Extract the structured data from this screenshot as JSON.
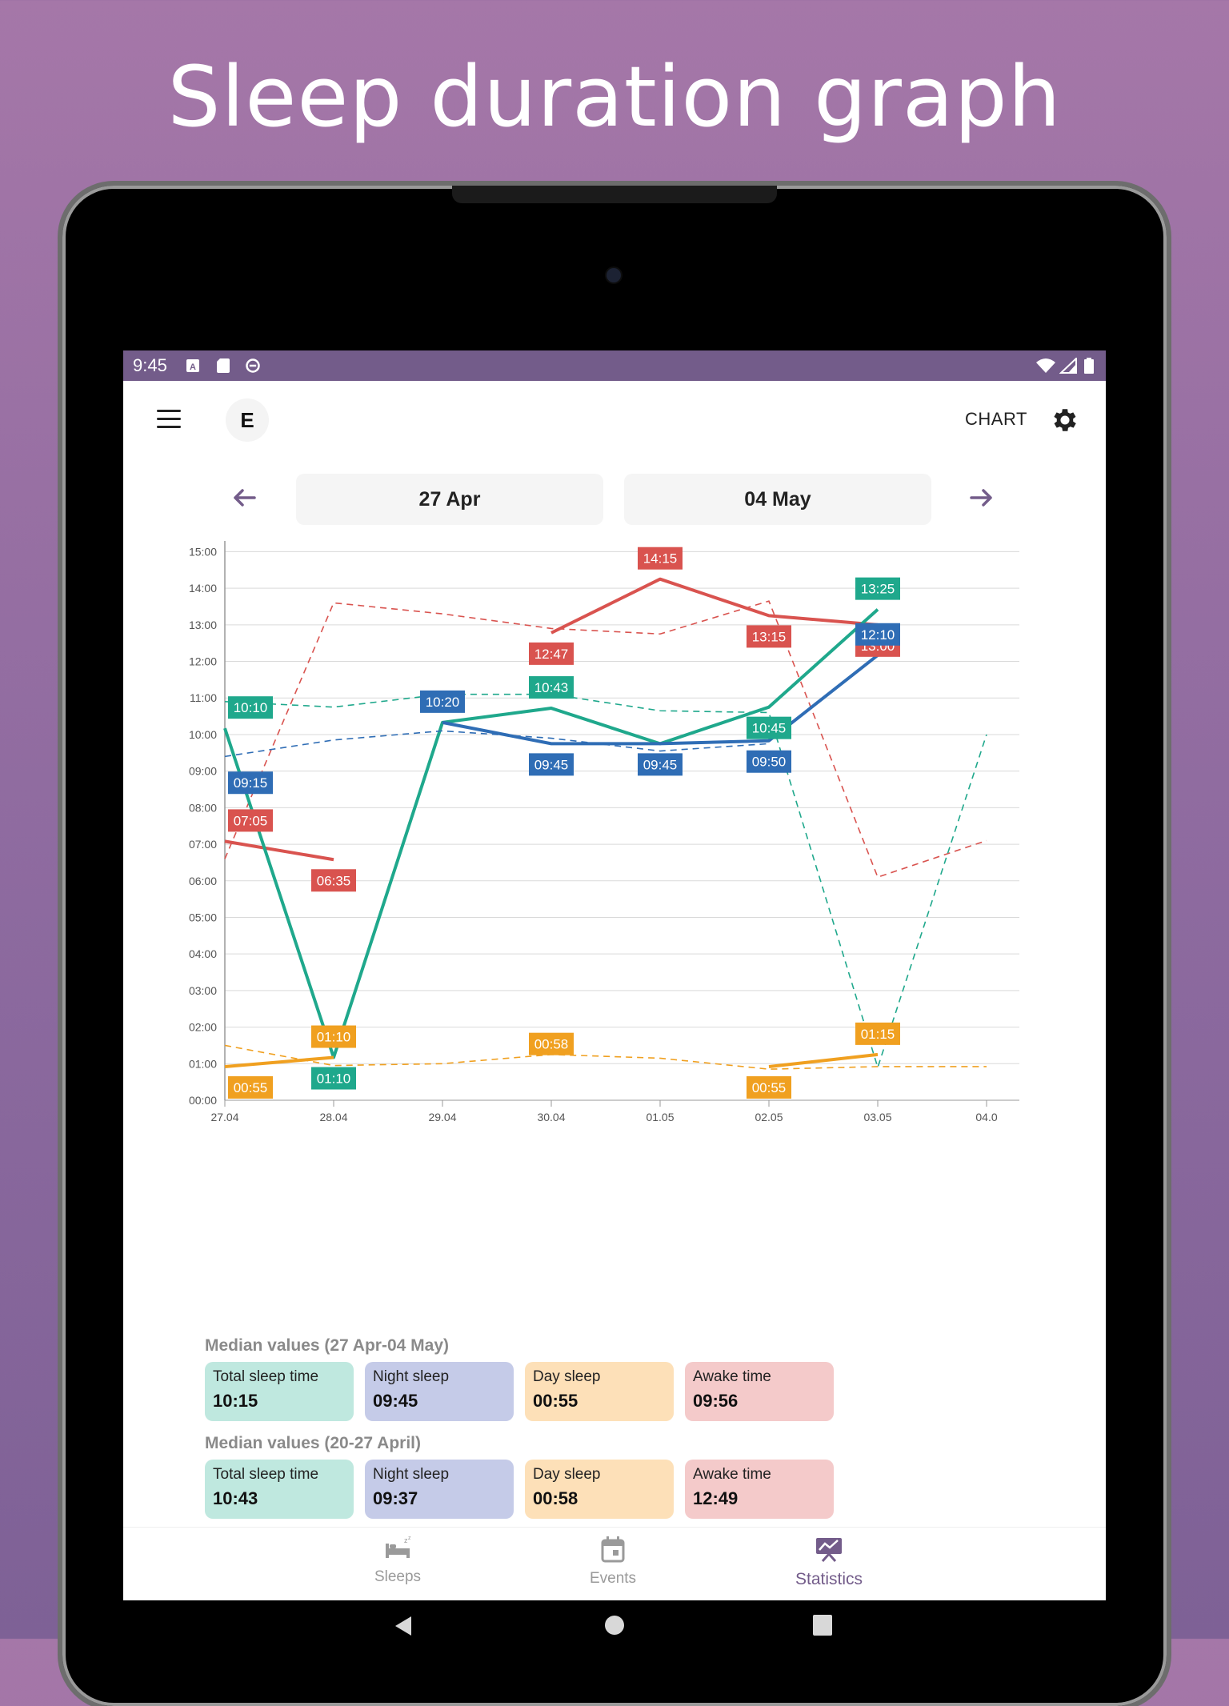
{
  "headline": "Sleep duration graph",
  "status": {
    "time": "9:45"
  },
  "appbar": {
    "avatar_letter": "E",
    "chart_label": "CHART"
  },
  "date_range": {
    "from": "27 Apr",
    "to": "04 May"
  },
  "chart_data": {
    "type": "line",
    "x": [
      "27.04",
      "28.04",
      "29.04",
      "30.04",
      "01.05",
      "02.05",
      "03.05",
      "04.05"
    ],
    "xtick_labels": [
      "27.04",
      "28.04",
      "29.04",
      "30.04",
      "01.05",
      "02.05",
      "03.05",
      "04.0"
    ],
    "yticks": [
      "00:00",
      "01:00",
      "02:00",
      "03:00",
      "04:00",
      "05:00",
      "06:00",
      "07:00",
      "08:00",
      "09:00",
      "10:00",
      "11:00",
      "12:00",
      "13:00",
      "14:00",
      "15:00"
    ],
    "ylim": [
      0,
      15.25
    ],
    "grid": true,
    "series": [
      {
        "color": "#d9534f",
        "style": "solid",
        "points": [
          [
            "27.04",
            7.08,
            "07:05",
            "above"
          ],
          [
            "28.04",
            6.58,
            "06:35",
            "below"
          ],
          null,
          [
            "30.04",
            12.78,
            "12:47",
            "below"
          ],
          [
            "01.05",
            14.25,
            "14:15",
            "above"
          ],
          [
            "02.05",
            13.25,
            "13:15",
            "below"
          ],
          [
            "03.05",
            13.0,
            "13:00",
            "below"
          ],
          null
        ]
      },
      {
        "color": "#d9534f",
        "style": "dashed",
        "points": [
          [
            "27.04",
            6.6
          ],
          [
            "28.04",
            13.6
          ],
          [
            "29.04",
            13.3
          ],
          [
            "30.04",
            12.9
          ],
          [
            "01.05",
            12.75
          ],
          [
            "02.05",
            13.65
          ],
          [
            "03.05",
            6.1
          ],
          [
            "04.05",
            7.1
          ]
        ]
      },
      {
        "color": "#1fa88c",
        "style": "solid",
        "points": [
          [
            "27.04",
            10.17,
            "10:10",
            "above"
          ],
          [
            "28.04",
            1.17,
            "01:10",
            "below"
          ],
          [
            "29.04",
            10.33
          ],
          [
            "30.04",
            10.72,
            "10:43",
            "above"
          ],
          [
            "01.05",
            9.75
          ],
          [
            "02.05",
            10.75,
            "10:45",
            "below"
          ],
          [
            "03.05",
            13.42,
            "13:25",
            "above"
          ],
          null
        ]
      },
      {
        "color": "#1fa88c",
        "style": "dashed",
        "points": [
          [
            "27.04",
            10.9
          ],
          [
            "28.04",
            10.75
          ],
          [
            "29.04",
            11.1
          ],
          [
            "30.04",
            11.1
          ],
          [
            "01.05",
            10.65
          ],
          [
            "02.05",
            10.6
          ],
          [
            "03.05",
            0.9
          ],
          [
            "04.05",
            10.0
          ]
        ]
      },
      {
        "color": "#2f6db5",
        "style": "solid",
        "points": [
          [
            "27.04",
            9.25,
            "09:15",
            "below"
          ],
          null,
          [
            "29.04",
            10.33,
            "10:20",
            "above"
          ],
          [
            "30.04",
            9.75,
            "09:45",
            "below"
          ],
          [
            "01.05",
            9.75,
            "09:45",
            "below"
          ],
          [
            "02.05",
            9.83,
            "09:50",
            "below"
          ],
          [
            "03.05",
            12.17,
            "12:10",
            "above"
          ],
          null
        ]
      },
      {
        "color": "#2f6db5",
        "style": "dashed",
        "points": [
          [
            "27.04",
            9.4
          ],
          [
            "28.04",
            9.85
          ],
          [
            "29.04",
            10.1
          ],
          [
            "30.04",
            9.9
          ],
          [
            "01.05",
            9.55
          ],
          [
            "02.05",
            9.75
          ],
          null,
          null
        ]
      },
      {
        "color": "#f0a020",
        "style": "solid",
        "points": [
          [
            "27.04",
            0.92,
            "00:55",
            "below"
          ],
          [
            "28.04",
            1.17,
            "01:10",
            "above"
          ],
          null,
          [
            "30.04",
            0.97,
            "00:58",
            "above"
          ],
          null,
          [
            "02.05",
            0.92,
            "00:55",
            "below"
          ],
          [
            "03.05",
            1.25,
            "01:15",
            "above"
          ],
          null
        ]
      },
      {
        "color": "#f0a020",
        "style": "dashed",
        "points": [
          [
            "27.04",
            1.5
          ],
          [
            "28.04",
            0.95
          ],
          [
            "29.04",
            1.0
          ],
          [
            "30.04",
            1.25
          ],
          [
            "01.05",
            1.15
          ],
          [
            "02.05",
            0.85
          ],
          [
            "03.05",
            0.92
          ],
          [
            "04.05",
            0.92
          ]
        ]
      }
    ]
  },
  "medians_current": {
    "title": "Median values (27 Apr-04 May)",
    "total": {
      "label": "Total sleep time",
      "value": "10:15"
    },
    "night": {
      "label": "Night sleep",
      "value": "09:45"
    },
    "day": {
      "label": "Day sleep",
      "value": "00:55"
    },
    "awake": {
      "label": "Awake time",
      "value": "09:56"
    }
  },
  "medians_previous": {
    "title": "Median values (20-27 April)",
    "total": {
      "label": "Total sleep time",
      "value": "10:43"
    },
    "night": {
      "label": "Night sleep",
      "value": "09:37"
    },
    "day": {
      "label": "Day sleep",
      "value": "00:58"
    },
    "awake": {
      "label": "Awake time",
      "value": "12:49"
    }
  },
  "card_colors": {
    "total": "#bfe8df",
    "night": "#c5cbe8",
    "day": "#fde0b8",
    "awake": "#f4caca"
  },
  "bottom_nav": {
    "sleeps": "Sleeps",
    "events": "Events",
    "statistics": "Statistics"
  }
}
